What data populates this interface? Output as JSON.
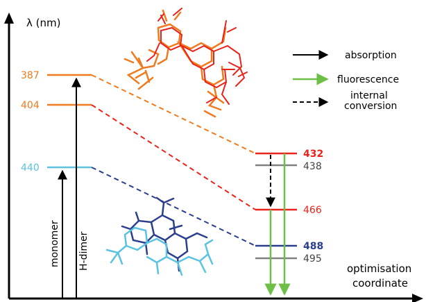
{
  "axes": {
    "y_label": "λ (nm)",
    "x_label_line1": "optimisation",
    "x_label_line2": "coordinate"
  },
  "legend": {
    "absorption": "absorption",
    "fluorescence": "fluorescence",
    "internal_conversion_line1": "internal",
    "internal_conversion_line2": "conversion"
  },
  "transitions": {
    "monomer": "monomer",
    "h_dimer": "H-dimer"
  },
  "levels": {
    "l387": "387",
    "l404": "404",
    "l440": "440",
    "l432": "432",
    "l438": "438",
    "l466": "466",
    "l488": "488",
    "l495": "495"
  },
  "colors": {
    "orange": "#f07a1e",
    "red": "#e8231c",
    "light_blue": "#5bc3e0",
    "dark_blue": "#2b3e8c",
    "grey": "#808080",
    "green": "#6dbf45",
    "black": "#000000"
  },
  "icons": {
    "top_molecule": "orange-red-molecule-structure",
    "bottom_molecule": "blue-molecule-structure"
  }
}
